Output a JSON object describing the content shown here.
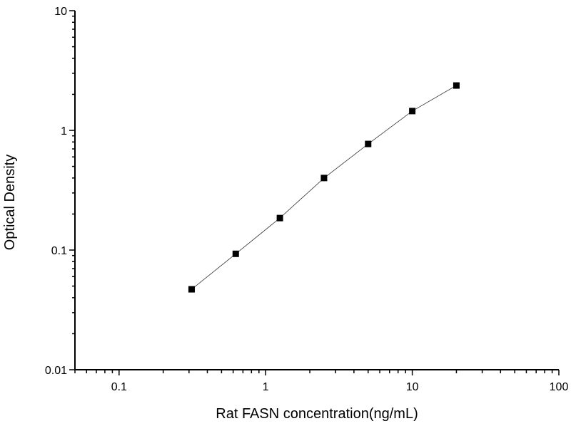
{
  "chart_data": {
    "type": "scatter",
    "title": "",
    "xlabel": "Rat FASN concentration(ng/mL)",
    "ylabel": "Optical Density",
    "x_scale": "log",
    "y_scale": "log",
    "xlim": [
      0.05,
      100
    ],
    "ylim": [
      0.01,
      10
    ],
    "x_ticks": [
      "0.1",
      "1",
      "10",
      "100"
    ],
    "x_tick_values": [
      0.1,
      1,
      10,
      100
    ],
    "y_ticks": [
      "0.01",
      "0.1",
      "1",
      "10"
    ],
    "y_tick_values": [
      0.01,
      0.1,
      1,
      10
    ],
    "grid": false,
    "legend": "none",
    "marker": "square",
    "color": "#000000",
    "fit_line": true,
    "series": [
      {
        "x": [
          0.3125,
          0.625,
          1.25,
          2.5,
          5,
          10,
          20
        ],
        "y": [
          0.047,
          0.093,
          0.185,
          0.4,
          0.77,
          1.45,
          2.37
        ]
      }
    ]
  }
}
